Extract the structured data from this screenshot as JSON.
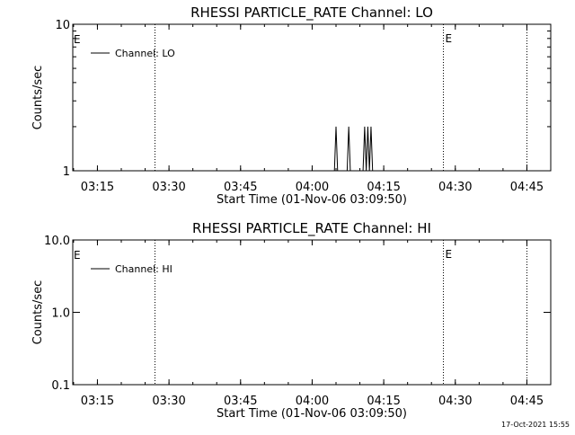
{
  "footer": {
    "timestamp": "17-Oct-2021 15:55"
  },
  "chart_data": [
    {
      "type": "line",
      "title": "RHESSI PARTICLE_RATE Channel: LO",
      "xlabel": "Start Time (01-Nov-06 03:09:50)",
      "ylabel": "Counts/sec",
      "xscale": "time",
      "xlim": [
        "03:09:50",
        "04:50:00"
      ],
      "ylim": [
        1,
        10
      ],
      "yscale": "log",
      "x_ticks": [
        "03:15",
        "03:30",
        "03:45",
        "04:00",
        "04:15",
        "04:30",
        "04:45"
      ],
      "y_ticks": [
        "1",
        "10"
      ],
      "legend": {
        "placement": "top-left",
        "entries": [
          "Channel: LO"
        ]
      },
      "grid": false,
      "event_lines": [
        {
          "time": "03:27:00",
          "label": ""
        },
        {
          "time": "04:27:30",
          "label": "E"
        },
        {
          "time": "04:45:00",
          "label": ""
        }
      ],
      "start_marker": "E",
      "series": [
        {
          "name": "Channel: LO",
          "points": [
            [
              "03:09:50",
              1
            ],
            [
              "04:04:40",
              1
            ],
            [
              "04:05:00",
              2
            ],
            [
              "04:05:20",
              1
            ],
            [
              "04:07:20",
              1
            ],
            [
              "04:07:40",
              2
            ],
            [
              "04:08:00",
              1
            ],
            [
              "04:10:40",
              1
            ],
            [
              "04:11:00",
              2
            ],
            [
              "04:11:20",
              1
            ],
            [
              "04:11:40",
              2
            ],
            [
              "04:12:00",
              1
            ],
            [
              "04:12:20",
              2
            ],
            [
              "04:12:40",
              1
            ],
            [
              "04:50:00",
              1
            ]
          ]
        }
      ]
    },
    {
      "type": "line",
      "title": "RHESSI PARTICLE_RATE Channel: HI",
      "xlabel": "Start Time (01-Nov-06 03:09:50)",
      "ylabel": "Counts/sec",
      "xscale": "time",
      "xlim": [
        "03:09:50",
        "04:50:00"
      ],
      "ylim": [
        0.1,
        10
      ],
      "yscale": "log",
      "x_ticks": [
        "03:15",
        "03:30",
        "03:45",
        "04:00",
        "04:15",
        "04:30",
        "04:45"
      ],
      "y_ticks": [
        "0.1",
        "1.0",
        "10.0"
      ],
      "legend": {
        "placement": "top-left",
        "entries": [
          "Channel: HI"
        ]
      },
      "grid": false,
      "event_lines": [
        {
          "time": "03:27:00",
          "label": ""
        },
        {
          "time": "04:27:30",
          "label": "E"
        },
        {
          "time": "04:45:00",
          "label": ""
        }
      ],
      "start_marker": "E",
      "series": [
        {
          "name": "Channel: HI",
          "points": []
        }
      ]
    }
  ]
}
